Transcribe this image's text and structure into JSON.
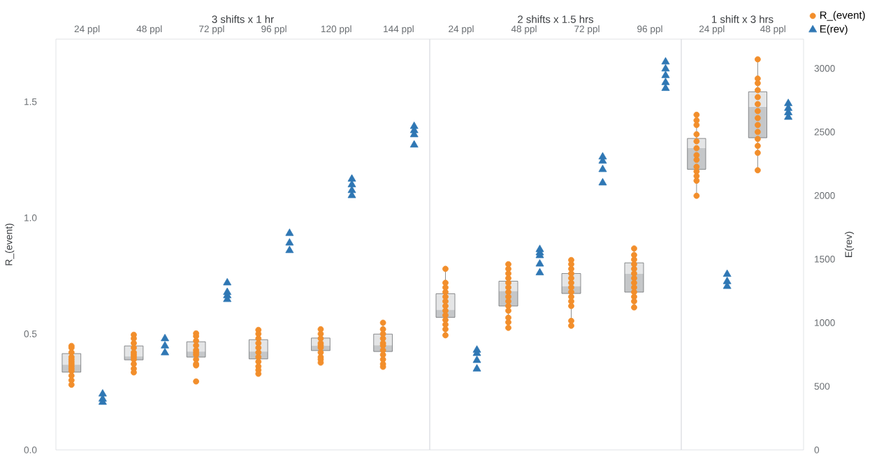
{
  "chart_data": [
    {
      "type": "box",
      "title": "3 shifts x 1 hr",
      "ylabel": "R_(event)",
      "tick_labels": "xy",
      "categories": [
        "24 ppl",
        "48 ppl",
        "72 ppl",
        "96 ppl",
        "120 ppl",
        "144 ppl"
      ],
      "ylim": [
        0,
        1.77
      ],
      "yticks": [
        {
          "value": 0,
          "label": "0.0"
        },
        0.5,
        {
          "value": 1,
          "label": "1.0"
        },
        1.5
      ],
      "y2lim": [
        0,
        3230
      ],
      "boxes": [
        {
          "low": 0.281,
          "q1": 0.335,
          "median": 0.367,
          "q3": 0.415,
          "high": 0.448
        },
        {
          "low": 0.334,
          "q1": 0.388,
          "median": 0.403,
          "q3": 0.448,
          "high": 0.496
        },
        {
          "low": 0.364,
          "q1": 0.4,
          "median": 0.424,
          "q3": 0.466,
          "high": 0.502
        },
        {
          "low": 0.328,
          "q1": 0.392,
          "median": 0.424,
          "q3": 0.475,
          "high": 0.517
        },
        {
          "low": 0.376,
          "q1": 0.428,
          "median": 0.45,
          "q3": 0.482,
          "high": 0.52
        },
        {
          "low": 0.358,
          "q1": 0.424,
          "median": 0.451,
          "q3": 0.499,
          "high": 0.548
        }
      ],
      "series": [
        {
          "type": "scatter",
          "color": "#f28e2b",
          "marker": "circle",
          "x": [
            "24 ppl",
            "24 ppl",
            "24 ppl",
            "24 ppl",
            "24 ppl",
            "24 ppl",
            "24 ppl",
            "24 ppl",
            "24 ppl",
            "24 ppl",
            "24 ppl",
            "24 ppl",
            "24 ppl",
            "48 ppl",
            "48 ppl",
            "48 ppl",
            "48 ppl",
            "48 ppl",
            "48 ppl",
            "48 ppl",
            "48 ppl",
            "48 ppl",
            "48 ppl",
            "48 ppl",
            "72 ppl",
            "72 ppl",
            "72 ppl",
            "72 ppl",
            "72 ppl",
            "72 ppl",
            "72 ppl",
            "72 ppl",
            "72 ppl",
            "72 ppl",
            "72 ppl",
            "96 ppl",
            "96 ppl",
            "96 ppl",
            "96 ppl",
            "96 ppl",
            "96 ppl",
            "96 ppl",
            "96 ppl",
            "96 ppl",
            "96 ppl",
            "96 ppl",
            "120 ppl",
            "120 ppl",
            "120 ppl",
            "120 ppl",
            "120 ppl",
            "120 ppl",
            "120 ppl",
            "120 ppl",
            "120 ppl",
            "120 ppl",
            "144 ppl",
            "144 ppl",
            "144 ppl",
            "144 ppl",
            "144 ppl",
            "144 ppl",
            "144 ppl",
            "144 ppl",
            "144 ppl",
            "144 ppl",
            "144 ppl"
          ],
          "values": [
            0.448,
            0.44,
            0.42,
            0.4,
            0.39,
            0.38,
            0.37,
            0.36,
            0.35,
            0.34,
            0.32,
            0.3,
            0.281,
            0.496,
            0.48,
            0.46,
            0.44,
            0.42,
            0.41,
            0.4,
            0.39,
            0.37,
            0.35,
            0.334,
            0.502,
            0.49,
            0.47,
            0.45,
            0.43,
            0.42,
            0.41,
            0.39,
            0.37,
            0.364,
            0.295,
            0.517,
            0.5,
            0.48,
            0.46,
            0.44,
            0.42,
            0.4,
            0.38,
            0.36,
            0.344,
            0.328,
            0.52,
            0.5,
            0.48,
            0.46,
            0.45,
            0.44,
            0.42,
            0.4,
            0.39,
            0.376,
            0.548,
            0.52,
            0.5,
            0.48,
            0.46,
            0.45,
            0.43,
            0.41,
            0.39,
            0.37,
            0.358
          ]
        },
        {
          "type": "scatter",
          "color": "#2f77b4",
          "marker": "triangle",
          "axis": "y2",
          "x": [
            "24 ppl",
            "24 ppl",
            "24 ppl",
            "48 ppl",
            "48 ppl",
            "48 ppl",
            "72 ppl",
            "72 ppl",
            "72 ppl",
            "72 ppl",
            "96 ppl",
            "96 ppl",
            "96 ppl",
            "120 ppl",
            "120 ppl",
            "120 ppl",
            "120 ppl",
            "144 ppl",
            "144 ppl",
            "144 ppl",
            "144 ppl"
          ],
          "values": [
            440,
            400,
            375,
            875,
            818,
            764,
            1314,
            1239,
            1213,
            1183,
            1703,
            1627,
            1568,
            2130,
            2085,
            2040,
            2000,
            2544,
            2511,
            2479,
            2398
          ]
        }
      ]
    },
    {
      "type": "box",
      "title": "2 shifts x 1.5 hrs",
      "tick_labels": "x",
      "categories": [
        "24 ppl",
        "48 ppl",
        "72 ppl",
        "96 ppl"
      ],
      "ylim": [
        0,
        1.77
      ],
      "y2lim": [
        0,
        3230
      ],
      "boxes": [
        {
          "low": 0.494,
          "q1": 0.571,
          "median": 0.604,
          "q3": 0.673,
          "high": 0.781
        },
        {
          "low": 0.526,
          "q1": 0.62,
          "median": 0.685,
          "q3": 0.727,
          "high": 0.8
        },
        {
          "low": 0.556,
          "q1": 0.674,
          "median": 0.706,
          "q3": 0.76,
          "high": 0.818
        },
        {
          "low": 0.614,
          "q1": 0.68,
          "median": 0.76,
          "q3": 0.806,
          "high": 0.868
        }
      ],
      "series": [
        {
          "type": "scatter",
          "color": "#f28e2b",
          "marker": "circle",
          "x": [
            "24 ppl",
            "24 ppl",
            "24 ppl",
            "24 ppl",
            "24 ppl",
            "24 ppl",
            "24 ppl",
            "24 ppl",
            "24 ppl",
            "24 ppl",
            "24 ppl",
            "24 ppl",
            "24 ppl",
            "48 ppl",
            "48 ppl",
            "48 ppl",
            "48 ppl",
            "48 ppl",
            "48 ppl",
            "48 ppl",
            "48 ppl",
            "48 ppl",
            "48 ppl",
            "48 ppl",
            "48 ppl",
            "48 ppl",
            "48 ppl",
            "72 ppl",
            "72 ppl",
            "72 ppl",
            "72 ppl",
            "72 ppl",
            "72 ppl",
            "72 ppl",
            "72 ppl",
            "72 ppl",
            "72 ppl",
            "72 ppl",
            "72 ppl",
            "72 ppl",
            "96 ppl",
            "96 ppl",
            "96 ppl",
            "96 ppl",
            "96 ppl",
            "96 ppl",
            "96 ppl",
            "96 ppl",
            "96 ppl",
            "96 ppl",
            "96 ppl",
            "96 ppl",
            "96 ppl"
          ],
          "values": [
            0.78,
            0.72,
            0.7,
            0.68,
            0.66,
            0.64,
            0.62,
            0.6,
            0.58,
            0.56,
            0.54,
            0.52,
            0.494,
            0.8,
            0.78,
            0.76,
            0.74,
            0.72,
            0.7,
            0.68,
            0.66,
            0.64,
            0.62,
            0.6,
            0.57,
            0.55,
            0.526,
            0.818,
            0.8,
            0.78,
            0.76,
            0.74,
            0.72,
            0.7,
            0.68,
            0.66,
            0.64,
            0.62,
            0.556,
            0.535,
            0.868,
            0.84,
            0.82,
            0.8,
            0.78,
            0.76,
            0.74,
            0.72,
            0.7,
            0.68,
            0.66,
            0.64,
            0.614
          ]
        },
        {
          "type": "scatter",
          "color": "#2f77b4",
          "marker": "triangle",
          "axis": "y2",
          "x": [
            "24 ppl",
            "24 ppl",
            "24 ppl",
            "24 ppl",
            "48 ppl",
            "48 ppl",
            "48 ppl",
            "48 ppl",
            "48 ppl",
            "72 ppl",
            "72 ppl",
            "72 ppl",
            "72 ppl",
            "96 ppl",
            "96 ppl",
            "96 ppl",
            "96 ppl",
            "96 ppl"
          ],
          "values": [
            785,
            759,
            704,
            637,
            1576,
            1550,
            1528,
            1462,
            1393,
            2304,
            2271,
            2205,
            2100,
            3051,
            2996,
            2944,
            2889,
            2843
          ]
        }
      ]
    },
    {
      "type": "box",
      "title": "1 shift x 3 hrs",
      "y2label": "E(rev)",
      "tick_labels": "xy2",
      "legend": "top right",
      "categories": [
        "24 ppl",
        "48 ppl"
      ],
      "ylim": [
        0,
        1.77
      ],
      "y2lim": [
        0,
        3230
      ],
      "y2ticks": [
        0,
        500,
        1000,
        1500,
        2000,
        2500,
        3000
      ],
      "boxes": [
        {
          "low": 1.095,
          "q1": 1.209,
          "median": 1.301,
          "q3": 1.342,
          "high": 1.444
        },
        {
          "low": 1.205,
          "q1": 1.345,
          "median": 1.479,
          "q3": 1.543,
          "high": 1.683
        }
      ],
      "series": [
        {
          "name": "R_(event)",
          "type": "scatter",
          "color": "#f28e2b",
          "marker": "circle",
          "x": [
            "24 ppl",
            "24 ppl",
            "24 ppl",
            "24 ppl",
            "24 ppl",
            "24 ppl",
            "24 ppl",
            "24 ppl",
            "24 ppl",
            "24 ppl",
            "24 ppl",
            "24 ppl",
            "24 ppl",
            "48 ppl",
            "48 ppl",
            "48 ppl",
            "48 ppl",
            "48 ppl",
            "48 ppl",
            "48 ppl",
            "48 ppl",
            "48 ppl",
            "48 ppl",
            "48 ppl",
            "48 ppl",
            "48 ppl",
            "48 ppl"
          ],
          "values": [
            1.444,
            1.42,
            1.4,
            1.36,
            1.33,
            1.3,
            1.27,
            1.25,
            1.22,
            1.2,
            1.18,
            1.16,
            1.095,
            1.683,
            1.6,
            1.58,
            1.55,
            1.52,
            1.49,
            1.46,
            1.43,
            1.4,
            1.37,
            1.34,
            1.31,
            1.28,
            1.205
          ]
        },
        {
          "name": "E(rev)",
          "type": "scatter",
          "color": "#2f77b4",
          "marker": "triangle",
          "axis": "y2",
          "x": [
            "24 ppl",
            "24 ppl",
            "24 ppl",
            "48 ppl",
            "48 ppl",
            "48 ppl",
            "48 ppl"
          ],
          "values": [
            1381,
            1324,
            1286,
            2724,
            2686,
            2652,
            2616
          ]
        }
      ]
    }
  ]
}
